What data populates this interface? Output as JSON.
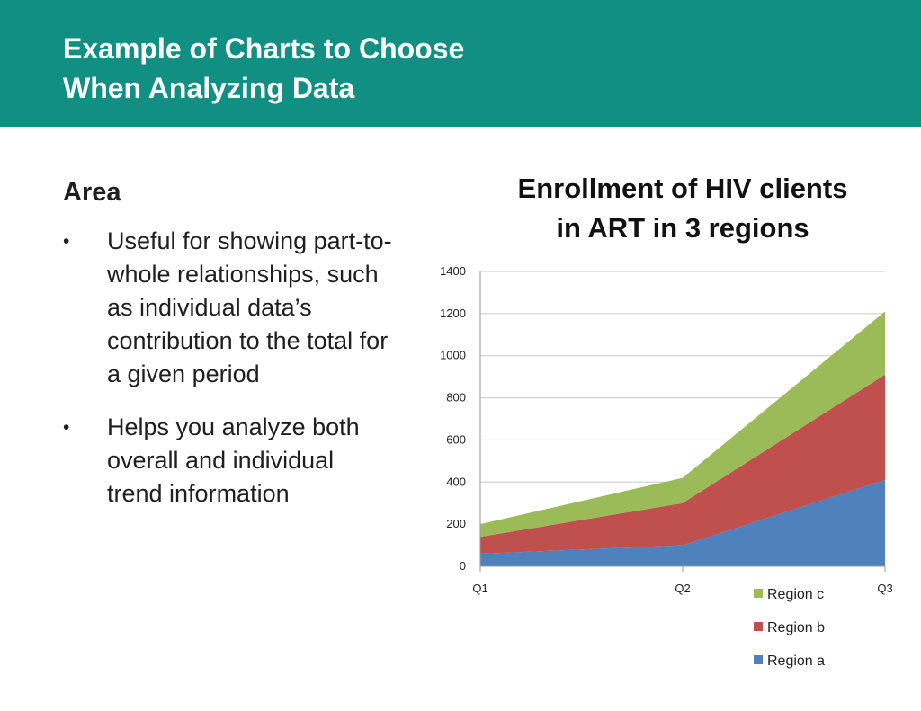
{
  "header": {
    "title_line1": "Example of Charts to Choose",
    "title_line2": "When Analyzing Data"
  },
  "content": {
    "section_title": "Area",
    "bullets": [
      "Useful for showing part-to-whole relationships, such as individual data’s contribution to the total for a given period",
      "Helps you analyze both overall and individual trend information"
    ],
    "bullet_glyph": "•"
  },
  "chart_data": {
    "type": "area",
    "stacked": true,
    "title_line1": "Enrollment of HIV clients",
    "title_line2": "in ART in 3 regions",
    "categories": [
      "Q1",
      "Q2",
      "Q3"
    ],
    "series": [
      {
        "name": "Region a",
        "values": [
          60,
          100,
          410
        ],
        "color": "#4f81bd"
      },
      {
        "name": "Region b",
        "values": [
          80,
          200,
          500
        ],
        "color": "#c0504d"
      },
      {
        "name": "Region c",
        "values": [
          60,
          120,
          300
        ],
        "color": "#9bbb59"
      }
    ],
    "ylim": [
      0,
      1400
    ],
    "yticks": [
      0,
      200,
      400,
      600,
      800,
      1000,
      1200,
      1400
    ],
    "grid": true,
    "legend_position": "bottom-right",
    "legend_order": [
      "Region c",
      "Region b",
      "Region a"
    ]
  }
}
